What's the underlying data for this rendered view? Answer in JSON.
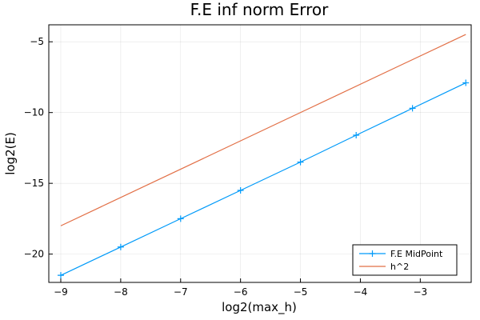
{
  "chart_data": {
    "type": "line",
    "title": "F.E inf norm Error",
    "xlabel": "log2(max_h)",
    "ylabel": "log2(E)",
    "xlim": [
      -9.2,
      -2.15
    ],
    "ylim": [
      -22.0,
      -3.8
    ],
    "xticks": [
      -9,
      -8,
      -7,
      -6,
      -5,
      -4,
      -3
    ],
    "yticks": [
      -20,
      -15,
      -10,
      -5
    ],
    "xtick_labels": [
      "−9",
      "−8",
      "−7",
      "−6",
      "−5",
      "−4",
      "−3"
    ],
    "ytick_labels": [
      "−20",
      "−15",
      "−10",
      "−5"
    ],
    "grid": true,
    "legend_position": "bottom-right",
    "series": [
      {
        "name": "F.E MidPoint",
        "color": "#009af9",
        "marker": "cross",
        "x": [
          -9.0,
          -8.0,
          -7.0,
          -6.0,
          -5.0,
          -4.07,
          -3.13,
          -2.24
        ],
        "y": [
          -21.5,
          -19.5,
          -17.5,
          -15.5,
          -13.5,
          -11.6,
          -9.7,
          -7.9
        ]
      },
      {
        "name": "h^2",
        "color": "#e26f46",
        "marker": "none",
        "x": [
          -9.0,
          -2.24
        ],
        "y": [
          -18.0,
          -4.48
        ]
      }
    ]
  }
}
